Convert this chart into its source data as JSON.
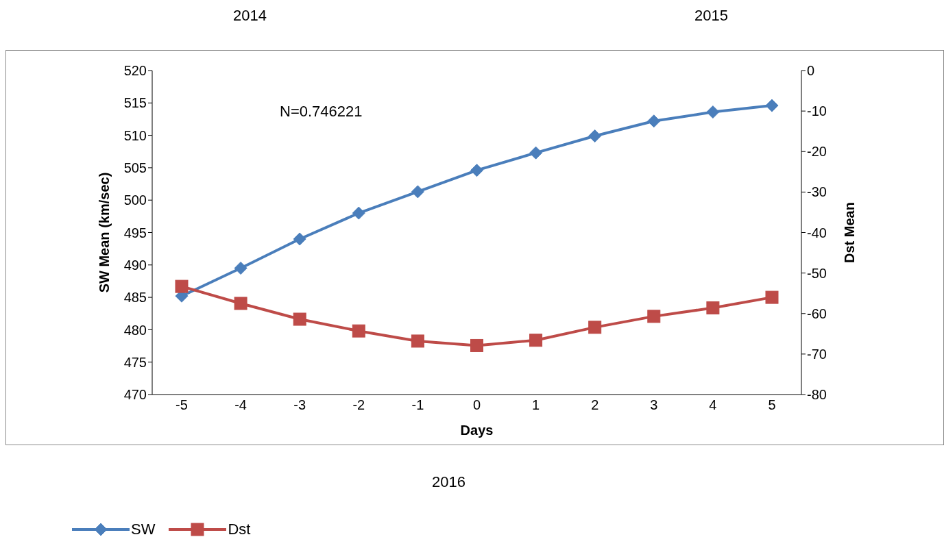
{
  "chart_data": {
    "type": "line",
    "categories": [
      "-5",
      "-4",
      "-3",
      "-2",
      "-1",
      "0",
      "1",
      "2",
      "3",
      "4",
      "5"
    ],
    "xlabel": "Days",
    "ylabel": "SW Mean (km/sec)",
    "y2label": "Dst Mean",
    "ylim": [
      470,
      520
    ],
    "yticks": [
      470,
      475,
      480,
      485,
      490,
      495,
      500,
      505,
      510,
      515,
      520
    ],
    "y2lim": [
      -80,
      0
    ],
    "y2ticks": [
      -80,
      -70,
      -60,
      -50,
      -40,
      -30,
      -20,
      -10,
      0
    ],
    "series": [
      {
        "name": "SW",
        "color": "#4a7ebb",
        "marker": "diamond",
        "values": [
          485.2,
          489.5,
          494.0,
          498.0,
          501.3,
          504.6,
          507.3,
          509.9,
          512.2,
          513.6,
          514.6
        ]
      },
      {
        "name": "Dst",
        "color": "#be4b48",
        "marker": "square",
        "axis": "y2",
        "values": [
          -53.3,
          -57.5,
          -61.4,
          -64.3,
          -66.8,
          -67.9,
          -66.6,
          -63.4,
          -60.7,
          -58.6,
          -56.0
        ]
      }
    ],
    "annotations": [
      "2014",
      "2015",
      "2016",
      "N=0.746221"
    ],
    "legend": "bottom left"
  }
}
